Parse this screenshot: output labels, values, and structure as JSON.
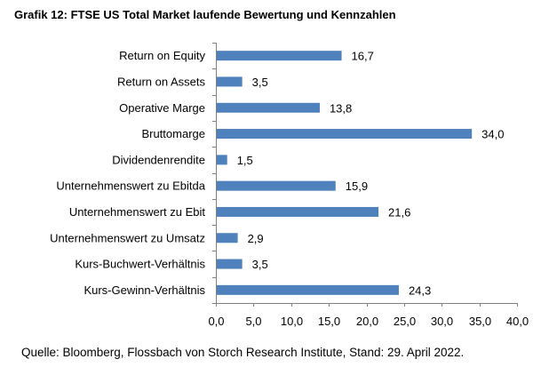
{
  "title": "Grafik 12: FTSE US Total Market laufende Bewertung und Kennzahlen",
  "source": "Quelle: Bloomberg, Flossbach von Storch Research Institute, Stand: 29. April 2022.",
  "colors": {
    "bar": "#4f81bd",
    "axis": "#808080"
  },
  "chart_data": {
    "type": "bar",
    "orientation": "horizontal",
    "categories": [
      "Return on Equity",
      "Return on Assets",
      "Operative Marge",
      "Bruttomarge",
      "Dividendenrendite",
      "Unternehmenswert zu Ebitda",
      "Unternehmenswert zu Ebit",
      "Unternehmenswert zu Umsatz",
      "Kurs-Buchwert-Verhältnis",
      "Kurs-Gewinn-Verhältnis"
    ],
    "values": [
      16.7,
      3.5,
      13.8,
      34.0,
      1.5,
      15.9,
      21.6,
      2.9,
      3.5,
      24.3
    ],
    "value_labels": [
      "16,7",
      "3,5",
      "13,8",
      "34,0",
      "1,5",
      "15,9",
      "21,6",
      "2,9",
      "3,5",
      "24,3"
    ],
    "xlim": [
      0,
      40
    ],
    "xticks": [
      "0,0",
      "5,0",
      "10,0",
      "15,0",
      "20,0",
      "25,0",
      "30,0",
      "35,0",
      "40,0"
    ],
    "grid": false,
    "legend": "none"
  }
}
